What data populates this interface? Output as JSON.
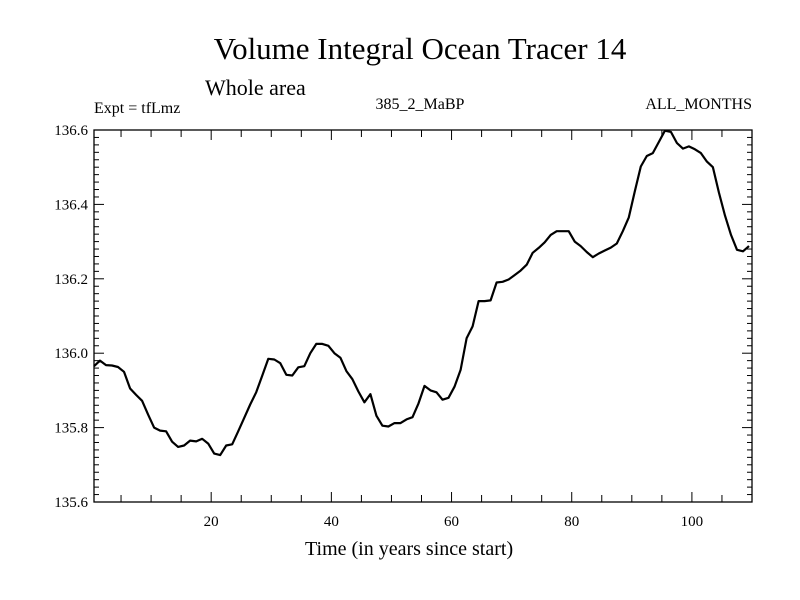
{
  "chart_data": {
    "type": "line",
    "title": "Volume Integral Ocean Tracer 14",
    "subtitle": "Whole area",
    "annotations": {
      "left": "Expt = tfLmz",
      "center": "385_2_MaBP",
      "right": "ALL_MONTHS"
    },
    "xlabel": "Time (in years since start)",
    "ylabel": "",
    "xlim": [
      0.5,
      110
    ],
    "ylim": [
      135.6,
      136.6
    ],
    "xticks": [
      20,
      40,
      60,
      80,
      100
    ],
    "yticks": [
      135.6,
      135.8,
      136.0,
      136.2,
      136.4,
      136.6
    ],
    "ytick_labels": [
      "135.6",
      "135.8",
      "136.0",
      "136.2",
      "136.4",
      "136.6"
    ],
    "x": [
      0.5,
      1.5,
      2.5,
      3.5,
      4.5,
      5.5,
      6.5,
      7.5,
      8.5,
      9.5,
      10.5,
      11.5,
      12.5,
      13.5,
      14.5,
      15.5,
      16.5,
      17.5,
      18.5,
      19.5,
      20.5,
      21.5,
      22.5,
      23.5,
      24.5,
      25.5,
      26.5,
      27.5,
      28.5,
      29.5,
      30.5,
      31.5,
      32.5,
      33.5,
      34.5,
      35.5,
      36.5,
      37.5,
      38.5,
      39.5,
      40.5,
      41.5,
      42.5,
      43.5,
      44.5,
      45.5,
      46.5,
      47.5,
      48.5,
      49.5,
      50.5,
      51.5,
      52.5,
      53.5,
      54.5,
      55.5,
      56.5,
      57.5,
      58.5,
      59.5,
      60.5,
      61.5,
      62.5,
      63.5,
      64.5,
      65.5,
      66.5,
      67.5,
      68.5,
      69.5,
      70.5,
      71.5,
      72.5,
      73.5,
      74.5,
      75.5,
      76.5,
      77.5,
      78.5,
      79.5,
      80.5,
      81.5,
      82.5,
      83.5,
      84.5,
      85.5,
      86.5,
      87.5,
      88.5,
      89.5,
      90.5,
      91.5,
      92.5,
      93.5,
      94.5,
      95.5,
      96.5,
      97.5,
      98.5,
      99.5,
      100.5,
      101.5,
      102.5,
      103.5,
      104.5,
      105.5,
      106.5,
      107.5,
      108.5,
      109.5
    ],
    "series": [
      {
        "name": "Volume Integral Ocean Tracer 14",
        "color": "#000000",
        "values": [
          135.965,
          135.98,
          135.968,
          135.967,
          135.963,
          135.95,
          135.905,
          135.888,
          135.872,
          135.835,
          135.8,
          135.792,
          135.79,
          135.762,
          135.748,
          135.752,
          135.765,
          135.763,
          135.77,
          135.757,
          135.73,
          135.726,
          135.752,
          135.755,
          135.79,
          135.826,
          135.862,
          135.895,
          135.94,
          135.985,
          135.983,
          135.973,
          135.942,
          135.94,
          135.962,
          135.965,
          136.0,
          136.025,
          136.025,
          136.02,
          136.0,
          135.988,
          135.952,
          135.93,
          135.897,
          135.868,
          135.89,
          135.832,
          135.805,
          135.803,
          135.812,
          135.812,
          135.822,
          135.828,
          135.865,
          135.912,
          135.9,
          135.895,
          135.875,
          135.88,
          135.91,
          135.955,
          136.04,
          136.072,
          136.14,
          136.14,
          136.142,
          136.19,
          136.192,
          136.198,
          136.21,
          136.222,
          136.238,
          136.27,
          136.283,
          136.298,
          136.318,
          136.328,
          136.328,
          136.328,
          136.3,
          136.288,
          136.272,
          136.258,
          136.268,
          136.276,
          136.284,
          136.295,
          136.328,
          136.365,
          136.435,
          136.502,
          136.53,
          136.538,
          136.568,
          136.598,
          136.595,
          136.565,
          136.55,
          136.556,
          136.548,
          136.538,
          136.515,
          136.5,
          136.432,
          136.37,
          136.318,
          136.278,
          136.274,
          136.288
        ]
      }
    ],
    "grid": false,
    "legend": "none"
  }
}
